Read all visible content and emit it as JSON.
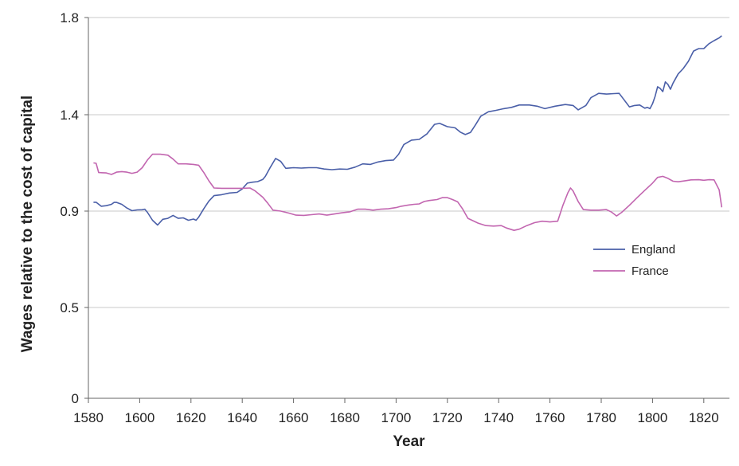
{
  "chart_data": {
    "type": "line",
    "title": "",
    "xlabel": "Year",
    "ylabel": "Wages relative to the cost of capital",
    "xlim": [
      1580,
      1830
    ],
    "xticks": [
      1580,
      1600,
      1620,
      1640,
      1660,
      1680,
      1700,
      1720,
      1740,
      1760,
      1780,
      1800,
      1820
    ],
    "yticks": [
      {
        "value": 0,
        "label": "0"
      },
      {
        "value": 0.5,
        "label": "0.5"
      },
      {
        "value": 0.9,
        "label": "0.9"
      },
      {
        "value": 1.4,
        "label": "1.4"
      },
      {
        "value": 1.8,
        "label": "1.8"
      }
    ],
    "grid": true,
    "legend_position": "right",
    "series": [
      {
        "name": "England",
        "color": "#4a5fa8",
        "points": [
          [
            1582,
            0.946
          ],
          [
            1583,
            0.946
          ],
          [
            1585,
            0.925
          ],
          [
            1587,
            0.928
          ],
          [
            1589,
            0.935
          ],
          [
            1590,
            0.945
          ],
          [
            1591,
            0.945
          ],
          [
            1593,
            0.935
          ],
          [
            1595,
            0.916
          ],
          [
            1597,
            0.902
          ],
          [
            1599,
            0.906
          ],
          [
            1601,
            0.907
          ],
          [
            1602,
            0.91
          ],
          [
            1603,
            0.895
          ],
          [
            1605,
            0.862
          ],
          [
            1607,
            0.842
          ],
          [
            1609,
            0.866
          ],
          [
            1611,
            0.87
          ],
          [
            1613,
            0.882
          ],
          [
            1615,
            0.87
          ],
          [
            1617,
            0.872
          ],
          [
            1619,
            0.862
          ],
          [
            1621,
            0.867
          ],
          [
            1622,
            0.862
          ],
          [
            1623,
            0.875
          ],
          [
            1625,
            0.912
          ],
          [
            1627,
            0.952
          ],
          [
            1629,
            0.98
          ],
          [
            1632,
            0.985
          ],
          [
            1635,
            0.994
          ],
          [
            1638,
            0.997
          ],
          [
            1640,
            1.015
          ],
          [
            1642,
            1.045
          ],
          [
            1644,
            1.05
          ],
          [
            1646,
            1.053
          ],
          [
            1648,
            1.064
          ],
          [
            1649,
            1.08
          ],
          [
            1651,
            1.128
          ],
          [
            1653,
            1.173
          ],
          [
            1655,
            1.158
          ],
          [
            1657,
            1.122
          ],
          [
            1660,
            1.125
          ],
          [
            1663,
            1.123
          ],
          [
            1666,
            1.125
          ],
          [
            1669,
            1.125
          ],
          [
            1672,
            1.118
          ],
          [
            1675,
            1.115
          ],
          [
            1678,
            1.118
          ],
          [
            1681,
            1.117
          ],
          [
            1684,
            1.128
          ],
          [
            1687,
            1.145
          ],
          [
            1690,
            1.142
          ],
          [
            1693,
            1.155
          ],
          [
            1696,
            1.162
          ],
          [
            1699,
            1.165
          ],
          [
            1701,
            1.195
          ],
          [
            1703,
            1.245
          ],
          [
            1706,
            1.268
          ],
          [
            1709,
            1.272
          ],
          [
            1712,
            1.3
          ],
          [
            1715,
            1.35
          ],
          [
            1717,
            1.355
          ],
          [
            1720,
            1.338
          ],
          [
            1723,
            1.332
          ],
          [
            1725,
            1.31
          ],
          [
            1727,
            1.297
          ],
          [
            1729,
            1.308
          ],
          [
            1731,
            1.348
          ],
          [
            1733,
            1.392
          ],
          [
            1736,
            1.412
          ],
          [
            1739,
            1.418
          ],
          [
            1742,
            1.425
          ],
          [
            1745,
            1.43
          ],
          [
            1748,
            1.44
          ],
          [
            1752,
            1.44
          ],
          [
            1755,
            1.435
          ],
          [
            1758,
            1.425
          ],
          [
            1762,
            1.435
          ],
          [
            1766,
            1.442
          ],
          [
            1769,
            1.438
          ],
          [
            1771,
            1.42
          ],
          [
            1774,
            1.438
          ],
          [
            1776,
            1.47
          ],
          [
            1779,
            1.488
          ],
          [
            1782,
            1.485
          ],
          [
            1785,
            1.487
          ],
          [
            1787,
            1.488
          ],
          [
            1789,
            1.46
          ],
          [
            1791,
            1.432
          ],
          [
            1793,
            1.438
          ],
          [
            1795,
            1.44
          ],
          [
            1797,
            1.427
          ],
          [
            1798,
            1.43
          ],
          [
            1799,
            1.425
          ],
          [
            1800,
            1.445
          ],
          [
            1801,
            1.475
          ],
          [
            1802,
            1.515
          ],
          [
            1803,
            1.508
          ],
          [
            1804,
            1.495
          ],
          [
            1805,
            1.535
          ],
          [
            1806,
            1.525
          ],
          [
            1807,
            1.505
          ],
          [
            1808,
            1.53
          ],
          [
            1810,
            1.568
          ],
          [
            1812,
            1.59
          ],
          [
            1814,
            1.62
          ],
          [
            1816,
            1.662
          ],
          [
            1818,
            1.672
          ],
          [
            1820,
            1.672
          ],
          [
            1822,
            1.692
          ],
          [
            1824,
            1.705
          ],
          [
            1826,
            1.716
          ],
          [
            1827,
            1.725
          ]
        ]
      },
      {
        "name": "France",
        "color": "#c266b0",
        "points": [
          [
            1582,
            1.15
          ],
          [
            1583,
            1.148
          ],
          [
            1584,
            1.1
          ],
          [
            1587,
            1.098
          ],
          [
            1589,
            1.09
          ],
          [
            1591,
            1.102
          ],
          [
            1593,
            1.105
          ],
          [
            1595,
            1.102
          ],
          [
            1597,
            1.096
          ],
          [
            1599,
            1.102
          ],
          [
            1601,
            1.125
          ],
          [
            1603,
            1.165
          ],
          [
            1605,
            1.195
          ],
          [
            1608,
            1.195
          ],
          [
            1611,
            1.19
          ],
          [
            1613,
            1.17
          ],
          [
            1615,
            1.145
          ],
          [
            1618,
            1.145
          ],
          [
            1621,
            1.142
          ],
          [
            1623,
            1.138
          ],
          [
            1625,
            1.1
          ],
          [
            1627,
            1.057
          ],
          [
            1629,
            1.02
          ],
          [
            1632,
            1.018
          ],
          [
            1636,
            1.018
          ],
          [
            1640,
            1.018
          ],
          [
            1643,
            1.02
          ],
          [
            1645,
            1.005
          ],
          [
            1648,
            0.972
          ],
          [
            1650,
            0.94
          ],
          [
            1652,
            0.905
          ],
          [
            1655,
            0.9
          ],
          [
            1658,
            0.892
          ],
          [
            1661,
            0.883
          ],
          [
            1664,
            0.882
          ],
          [
            1667,
            0.885
          ],
          [
            1670,
            0.888
          ],
          [
            1673,
            0.883
          ],
          [
            1676,
            0.888
          ],
          [
            1679,
            0.893
          ],
          [
            1682,
            0.897
          ],
          [
            1685,
            0.91
          ],
          [
            1688,
            0.91
          ],
          [
            1691,
            0.905
          ],
          [
            1694,
            0.91
          ],
          [
            1697,
            0.912
          ],
          [
            1700,
            0.918
          ],
          [
            1702,
            0.925
          ],
          [
            1705,
            0.932
          ],
          [
            1707,
            0.935
          ],
          [
            1709,
            0.937
          ],
          [
            1711,
            0.95
          ],
          [
            1713,
            0.955
          ],
          [
            1716,
            0.96
          ],
          [
            1718,
            0.97
          ],
          [
            1720,
            0.97
          ],
          [
            1722,
            0.96
          ],
          [
            1724,
            0.948
          ],
          [
            1726,
            0.91
          ],
          [
            1728,
            0.87
          ],
          [
            1730,
            0.86
          ],
          [
            1732,
            0.85
          ],
          [
            1735,
            0.84
          ],
          [
            1738,
            0.838
          ],
          [
            1741,
            0.84
          ],
          [
            1743,
            0.83
          ],
          [
            1746,
            0.82
          ],
          [
            1748,
            0.825
          ],
          [
            1751,
            0.84
          ],
          [
            1754,
            0.852
          ],
          [
            1757,
            0.858
          ],
          [
            1760,
            0.855
          ],
          [
            1763,
            0.858
          ],
          [
            1765,
            0.928
          ],
          [
            1767,
            0.995
          ],
          [
            1768,
            1.02
          ],
          [
            1769,
            1.005
          ],
          [
            1771,
            0.95
          ],
          [
            1773,
            0.908
          ],
          [
            1776,
            0.905
          ],
          [
            1779,
            0.905
          ],
          [
            1782,
            0.908
          ],
          [
            1784,
            0.896
          ],
          [
            1786,
            0.88
          ],
          [
            1788,
            0.895
          ],
          [
            1791,
            0.93
          ],
          [
            1794,
            0.97
          ],
          [
            1797,
            1.008
          ],
          [
            1800,
            1.045
          ],
          [
            1802,
            1.075
          ],
          [
            1804,
            1.08
          ],
          [
            1806,
            1.07
          ],
          [
            1808,
            1.055
          ],
          [
            1810,
            1.052
          ],
          [
            1813,
            1.058
          ],
          [
            1815,
            1.062
          ],
          [
            1818,
            1.063
          ],
          [
            1820,
            1.06
          ],
          [
            1822,
            1.063
          ],
          [
            1824,
            1.062
          ],
          [
            1826,
            1.01
          ],
          [
            1827,
            0.92
          ]
        ]
      }
    ]
  }
}
